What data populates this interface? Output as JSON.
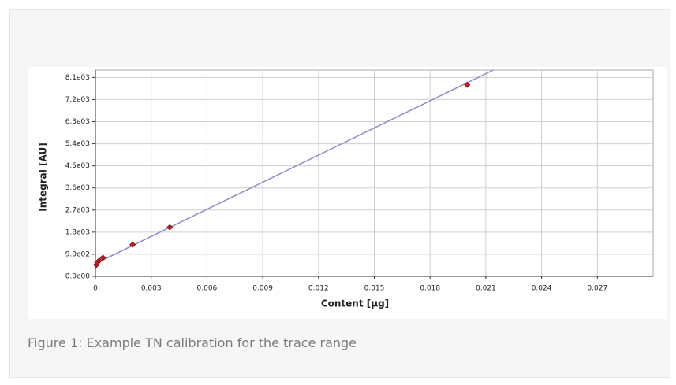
{
  "caption": "Figure 1: Example TN calibration for the trace range",
  "chart_data": {
    "type": "scatter",
    "xlabel": "Content [µg]",
    "ylabel": "Integral [AU]",
    "xlim": [
      0,
      0.03
    ],
    "ylim": [
      0,
      8400
    ],
    "xticks": [
      0,
      0.003,
      0.006,
      0.009,
      0.012,
      0.015,
      0.018,
      0.021,
      0.024,
      0.027
    ],
    "yticks": [
      {
        "value": 0,
        "label": "0.0e00"
      },
      {
        "value": 900,
        "label": "9.0e02"
      },
      {
        "value": 1800,
        "label": "1.8e03"
      },
      {
        "value": 2700,
        "label": "2.7e03"
      },
      {
        "value": 3600,
        "label": "3.6e03"
      },
      {
        "value": 4500,
        "label": "4.5e03"
      },
      {
        "value": 5400,
        "label": "5.4e03"
      },
      {
        "value": 6300,
        "label": "6.3e03"
      },
      {
        "value": 7200,
        "label": "7.2e03"
      },
      {
        "value": 8100,
        "label": "8.1e03"
      }
    ],
    "grid": true,
    "series": [
      {
        "mode": "line",
        "color": "#8a8ad0",
        "x": [
          0,
          0.0214
        ],
        "values": [
          520,
          8400
        ]
      },
      {
        "mode": "markers",
        "color": "#d01818",
        "x": [
          5e-05,
          0.0001,
          0.0002,
          0.0004,
          0.002,
          0.004,
          0.02
        ],
        "values": [
          470,
          560,
          640,
          760,
          1290,
          2000,
          7800
        ]
      }
    ]
  }
}
